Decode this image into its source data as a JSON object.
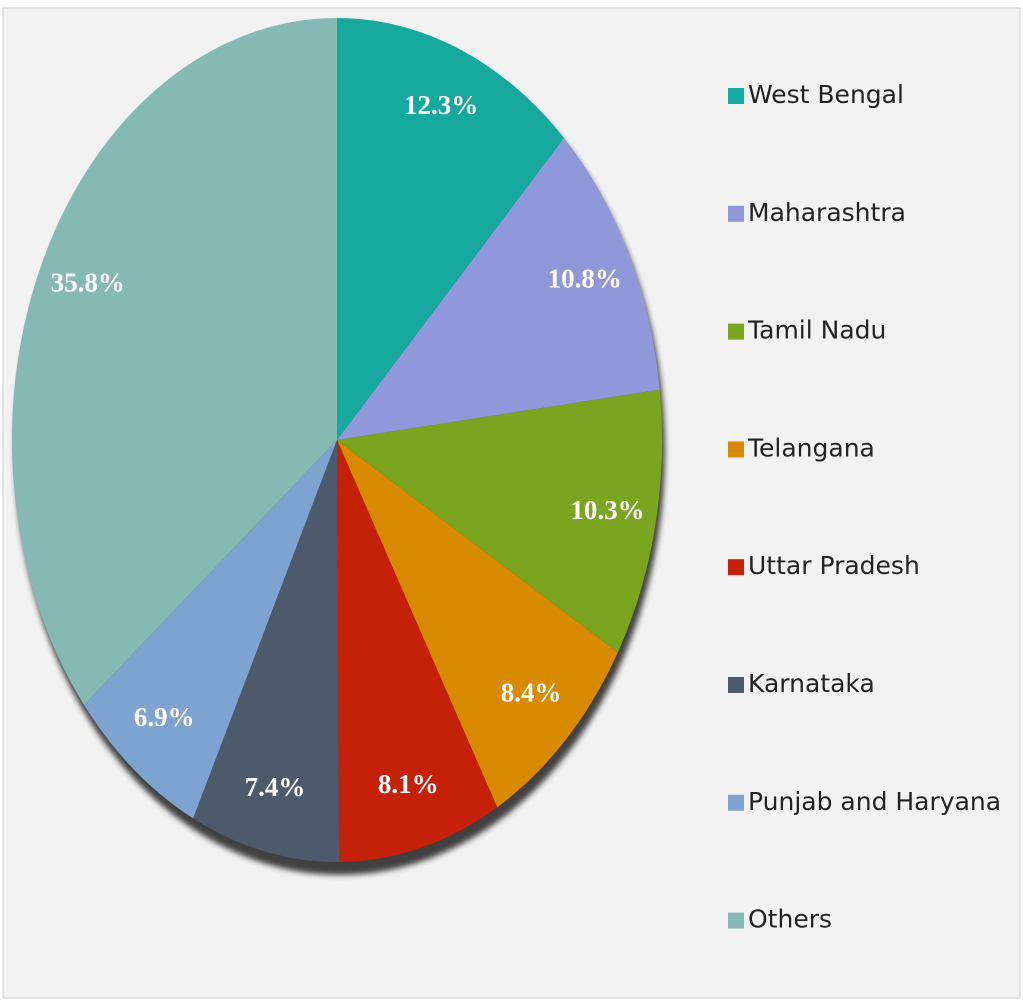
{
  "chart_data": {
    "type": "pie",
    "categories": [
      "West Bengal",
      "Maharashtra",
      "Tamil Nadu",
      "Telangana",
      "Uttar Pradesh",
      "Karnataka",
      "Punjab and Haryana",
      "Others"
    ],
    "values": [
      12.3,
      10.8,
      10.3,
      8.4,
      8.1,
      7.4,
      6.9,
      35.8
    ],
    "value_labels": [
      "12.3%",
      "10.8%",
      "10.3%",
      "8.4%",
      "8.1%",
      "7.4%",
      "6.9%",
      "35.8%"
    ],
    "colors": [
      "#14a89e",
      "#8f98d8",
      "#7aa51e",
      "#d88a00",
      "#c52108",
      "#4c5a6c",
      "#7fa3d1",
      "#85bab4"
    ],
    "legend": "right"
  }
}
